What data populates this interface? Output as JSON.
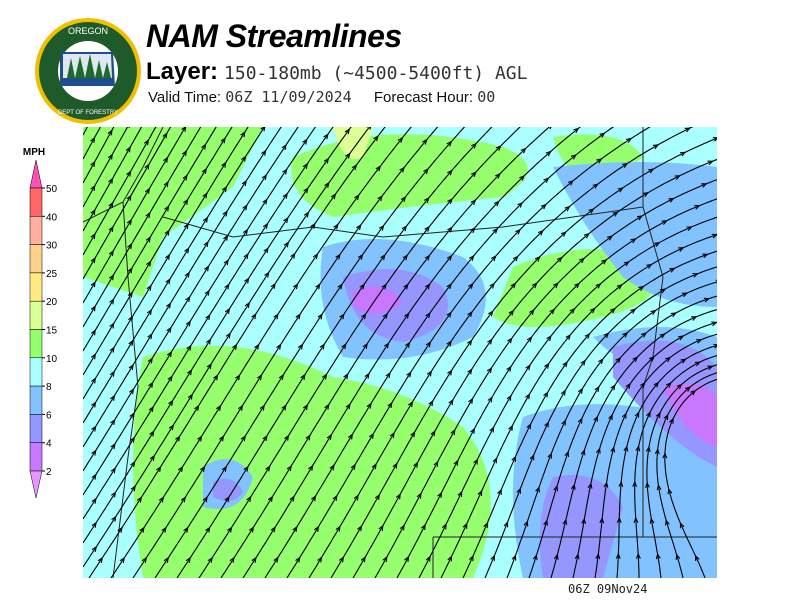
{
  "logo": {
    "text_top": "OREGON",
    "text_bottom": "DEPARTMENT OF FORESTRY"
  },
  "header": {
    "title": "NAM Streamlines",
    "layer_label": "Layer:",
    "layer_value": "150-180mb (~4500-5400ft) AGL",
    "valid_label": "Valid Time:",
    "valid_value": "06Z 11/09/2024",
    "forecast_label": "Forecast Hour:",
    "forecast_value": "00"
  },
  "colorbar": {
    "unit": "MPH",
    "ticks": [
      "50",
      "40",
      "30",
      "25",
      "20",
      "15",
      "10",
      "8",
      "6",
      "4",
      "2"
    ],
    "colors": [
      "#ff6666",
      "#ffafa0",
      "#ffd28c",
      "#ffeb82",
      "#dcff96",
      "#96ff6e",
      "#aaffff",
      "#82c3ff",
      "#9696ff",
      "#c878ff"
    ],
    "top_arrow_color": "#ff50b4",
    "bottom_arrow_color": "#e696ff"
  },
  "map": {
    "stamp": "06Z 09Nov24"
  }
}
